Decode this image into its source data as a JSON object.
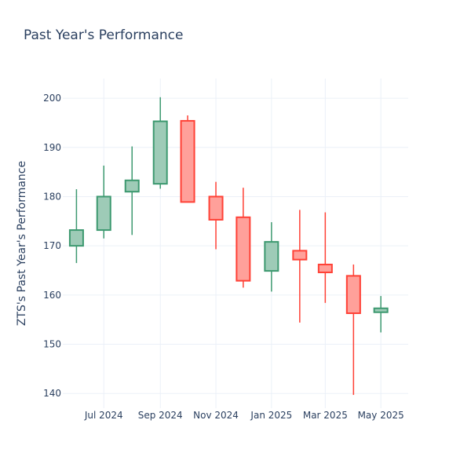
{
  "chart_data": {
    "type": "candlestick",
    "title": "Past Year's Performance",
    "xlabel": "",
    "ylabel": "ZTS's Past Year's Performance",
    "ylim": [
      137,
      204
    ],
    "xlim": [
      "2024-05-17",
      "2025-05-31"
    ],
    "grid": true,
    "legend": "none",
    "y_ticks": [
      140,
      150,
      160,
      170,
      180,
      190,
      200
    ],
    "x_ticks": [
      {
        "date": "2024-07-01",
        "label": "Jul 2024"
      },
      {
        "date": "2024-09-01",
        "label": "Sep 2024"
      },
      {
        "date": "2024-11-01",
        "label": "Nov 2024"
      },
      {
        "date": "2025-01-01",
        "label": "Jan 2025"
      },
      {
        "date": "2025-03-01",
        "label": "Mar 2025"
      },
      {
        "date": "2025-05-01",
        "label": "May 2025"
      }
    ],
    "colors": {
      "increasing_line": "#3d9970",
      "increasing_fill": "#9ecbb7",
      "decreasing_line": "#ff4136",
      "decreasing_fill": "#ffa09a"
    },
    "candles": [
      {
        "date": "2024-06-01",
        "open": 170.0,
        "high": 181.5,
        "low": 166.5,
        "close": 173.2
      },
      {
        "date": "2024-07-01",
        "open": 173.2,
        "high": 186.3,
        "low": 171.5,
        "close": 180.0
      },
      {
        "date": "2024-08-01",
        "open": 181.0,
        "high": 190.2,
        "low": 172.2,
        "close": 183.3
      },
      {
        "date": "2024-09-01",
        "open": 182.6,
        "high": 200.2,
        "low": 181.6,
        "close": 195.3
      },
      {
        "date": "2024-10-01",
        "open": 195.4,
        "high": 196.5,
        "low": 178.9,
        "close": 178.9
      },
      {
        "date": "2024-11-01",
        "open": 180.0,
        "high": 183.0,
        "low": 169.3,
        "close": 175.3
      },
      {
        "date": "2024-12-01",
        "open": 175.8,
        "high": 181.8,
        "low": 161.5,
        "close": 162.9
      },
      {
        "date": "2025-01-01",
        "open": 164.9,
        "high": 174.8,
        "low": 160.7,
        "close": 170.8
      },
      {
        "date": "2025-02-01",
        "open": 169.0,
        "high": 177.3,
        "low": 154.4,
        "close": 167.2
      },
      {
        "date": "2025-03-01",
        "open": 166.2,
        "high": 176.8,
        "low": 158.4,
        "close": 164.6
      },
      {
        "date": "2025-04-01",
        "open": 163.9,
        "high": 166.2,
        "low": 139.7,
        "close": 156.3
      },
      {
        "date": "2025-05-01",
        "open": 156.5,
        "high": 159.8,
        "low": 152.4,
        "close": 157.3
      }
    ]
  }
}
